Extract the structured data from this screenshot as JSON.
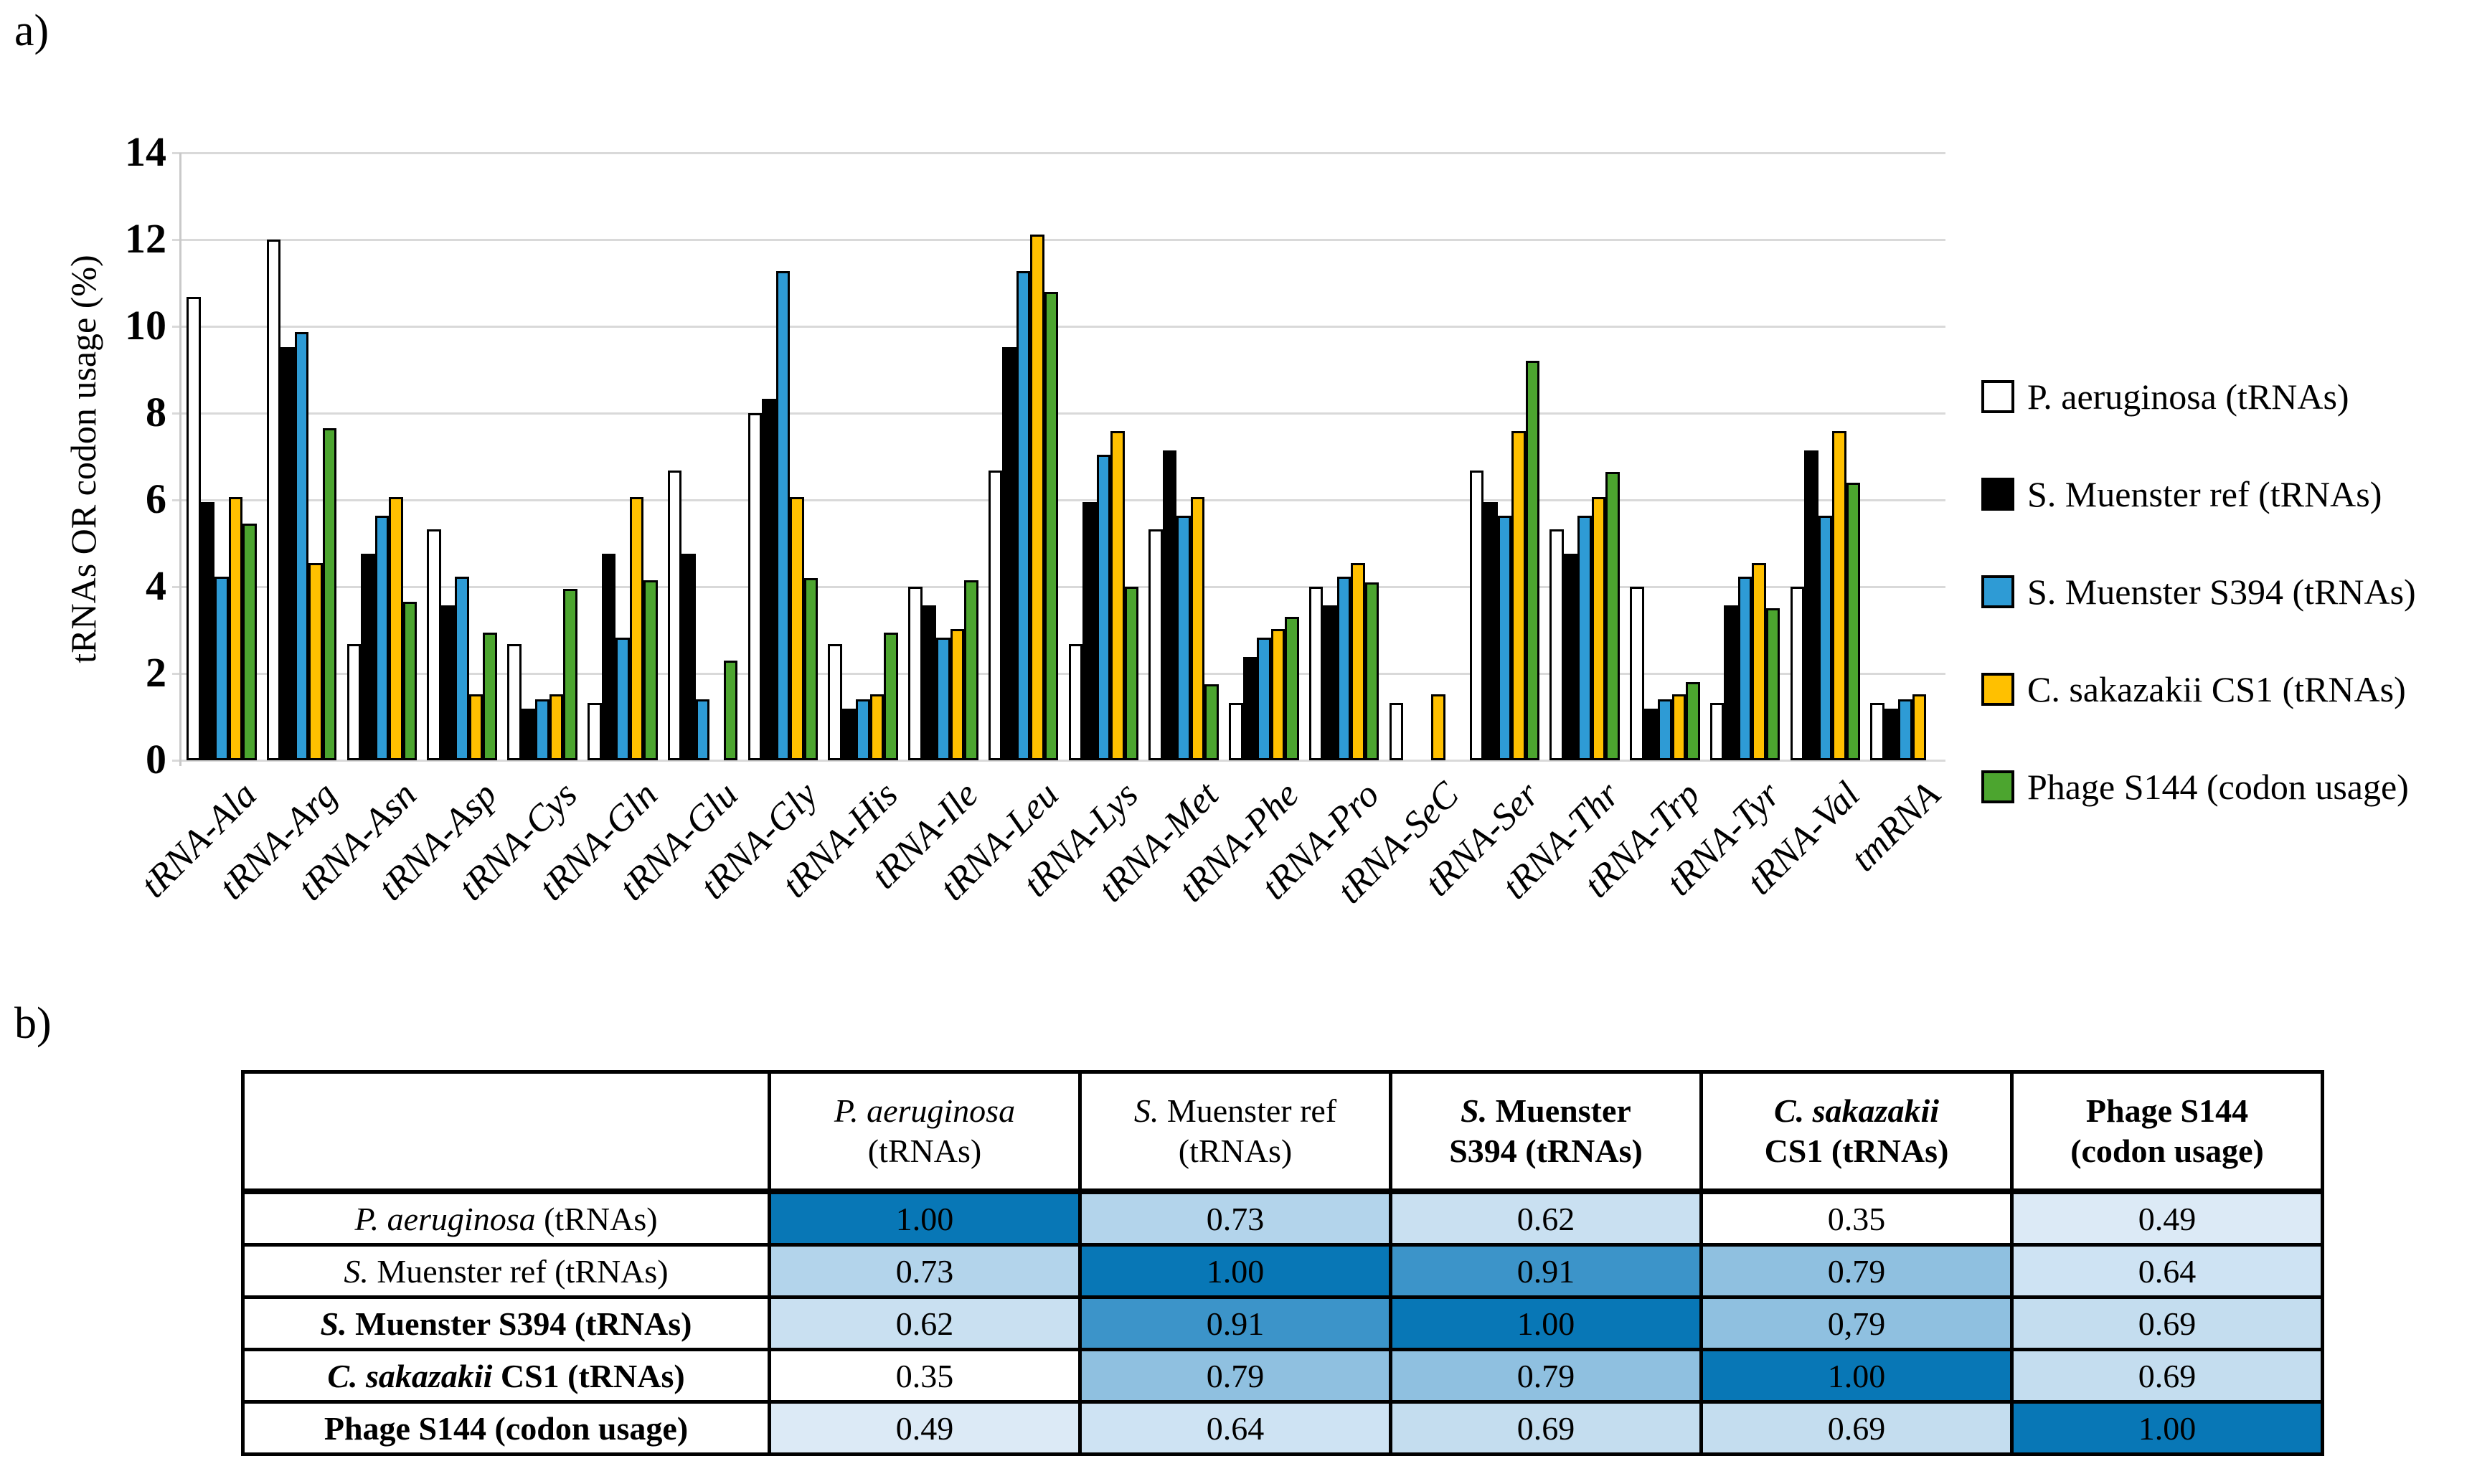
{
  "panel_a": {
    "label": "a)",
    "y_axis_title": "tRNAs OR codon usage (%)"
  },
  "panel_b": {
    "label": "b)"
  },
  "chart_data": [
    {
      "type": "bar",
      "title": "",
      "xlabel": "",
      "ylabel": "tRNAs OR codon usage (%)",
      "ylim": [
        0,
        14
      ],
      "ytick_step": 2,
      "grid": true,
      "legend_position": "right",
      "gridline_color": "#D9D9D9",
      "bar_outline_color": "#000000",
      "categories": [
        "tRNA-Ala",
        "tRNA-Arg",
        "tRNA-Asn",
        "tRNA-Asp",
        "tRNA-Cys",
        "tRNA-Gln",
        "tRNA-Glu",
        "tRNA-Gly",
        "tRNA-His",
        "tRNA-Ile",
        "tRNA-Leu",
        "tRNA-Lys",
        "tRNA-Met",
        "tRNA-Phe",
        "tRNA-Pro",
        "tRNA-SeC",
        "tRNA-Ser",
        "tRNA-Thr",
        "tRNA-Trp",
        "tRNA-Tyr",
        "tRNA-Val",
        "tmRNA"
      ],
      "series": [
        {
          "name": "P. aeruginosa (tRNAs)",
          "color": "#FFFFFF",
          "values": [
            10.67,
            12.0,
            2.67,
            5.33,
            2.67,
            1.33,
            6.67,
            8.0,
            2.67,
            4.0,
            6.67,
            2.67,
            5.33,
            1.33,
            4.0,
            1.33,
            6.67,
            5.33,
            4.0,
            1.33,
            4.0,
            1.33
          ]
        },
        {
          "name": "S. Muenster ref (tRNAs)",
          "color": "#000000",
          "values": [
            5.95,
            9.52,
            4.76,
            3.57,
            1.19,
            4.76,
            4.76,
            8.33,
            1.19,
            3.57,
            9.52,
            5.95,
            7.14,
            2.38,
            3.57,
            0,
            5.95,
            4.76,
            1.19,
            3.57,
            7.14,
            1.19
          ]
        },
        {
          "name": "S. Muenster S394 (tRNAs)",
          "color": "#2E9BD5",
          "values": [
            4.23,
            9.86,
            5.63,
            4.23,
            1.41,
            2.82,
            1.41,
            11.27,
            1.41,
            2.82,
            11.27,
            7.04,
            5.63,
            2.82,
            4.23,
            0,
            5.63,
            5.63,
            1.41,
            4.23,
            5.63,
            1.41
          ]
        },
        {
          "name": "C. sakazakii CS1 (tRNAs)",
          "color": "#FFC000",
          "values": [
            6.06,
            4.55,
            6.06,
            1.52,
            1.52,
            6.06,
            0,
            6.06,
            1.52,
            3.03,
            12.12,
            7.58,
            6.06,
            3.03,
            4.55,
            1.52,
            7.58,
            6.06,
            1.52,
            4.55,
            7.58,
            1.52
          ]
        },
        {
          "name": "Phage S144 (codon usage)",
          "color": "#4CA52F",
          "values": [
            5.45,
            7.65,
            3.65,
            2.95,
            3.95,
            4.15,
            2.3,
            4.2,
            2.95,
            4.15,
            10.8,
            4.0,
            1.75,
            3.3,
            4.1,
            0,
            9.2,
            6.65,
            1.8,
            3.5,
            6.4,
            0
          ]
        }
      ]
    },
    {
      "type": "table",
      "col_headers": [
        {
          "lines": [
            []
          ],
          "bold": false
        },
        {
          "lines": [
            [
              {
                "t": "P. aeruginosa",
                "i": true
              }
            ],
            [
              {
                "t": "(tRNAs)"
              }
            ]
          ],
          "bold": false
        },
        {
          "lines": [
            [
              {
                "t": "S.",
                "i": true
              },
              {
                "t": " Muenster ref"
              }
            ],
            [
              {
                "t": "(tRNAs)"
              }
            ]
          ],
          "bold": false
        },
        {
          "lines": [
            [
              {
                "t": "S.",
                "i": true
              },
              {
                "t": " Muenster"
              }
            ],
            [
              {
                "t": "S394 (tRNAs)"
              }
            ]
          ],
          "bold": true
        },
        {
          "lines": [
            [
              {
                "t": "C. sakazakii",
                "i": true
              }
            ],
            [
              {
                "t": "CS1 (tRNAs)"
              }
            ]
          ],
          "bold": true
        },
        {
          "lines": [
            [
              {
                "t": "Phage S144"
              }
            ],
            [
              {
                "t": "(codon usage)"
              }
            ]
          ],
          "bold": true
        }
      ],
      "rows": [
        {
          "header": {
            "segs": [
              {
                "t": "P. aeruginosa",
                "i": true
              },
              {
                "t": " (tRNAs)"
              }
            ],
            "bold": false
          },
          "values": [
            "1.00",
            "0.73",
            "0.62",
            "0.35",
            "0.49"
          ]
        },
        {
          "header": {
            "segs": [
              {
                "t": "S.",
                "i": true
              },
              {
                "t": " Muenster ref (tRNAs)"
              }
            ],
            "bold": false
          },
          "values": [
            "0.73",
            "1.00",
            "0.91",
            "0.79",
            "0.64"
          ]
        },
        {
          "header": {
            "segs": [
              {
                "t": "S.",
                "i": true
              },
              {
                "t": " Muenster S394 (tRNAs)"
              }
            ],
            "bold": true
          },
          "values": [
            "0.62",
            "0.91",
            "1.00",
            "0,79",
            "0.69"
          ]
        },
        {
          "header": {
            "segs": [
              {
                "t": "C. sakazakii",
                "i": true
              },
              {
                "t": " CS1 (tRNAs)"
              }
            ],
            "bold": true
          },
          "values": [
            "0.35",
            "0.79",
            "0.79",
            "1.00",
            "0.69"
          ]
        },
        {
          "header": {
            "segs": [
              {
                "t": "Phage S144 (codon usage)"
              }
            ],
            "bold": true
          },
          "values": [
            "0.49",
            "0.64",
            "0.69",
            "0.69",
            "1.00"
          ]
        }
      ],
      "value_colors": {
        "1.00": "#0877B6",
        "0.91": "#3C94C9",
        "0.79": "#8FC0E0",
        "0,79": "#8FC0E0",
        "0.73": "#B3D4EB",
        "0.69": "#C4DDEF",
        "0.64": "#CEE3F3",
        "0.62": "#C9E0F1",
        "0.49": "#DCEAF6",
        "0.35": "#FFFFFF"
      }
    }
  ]
}
